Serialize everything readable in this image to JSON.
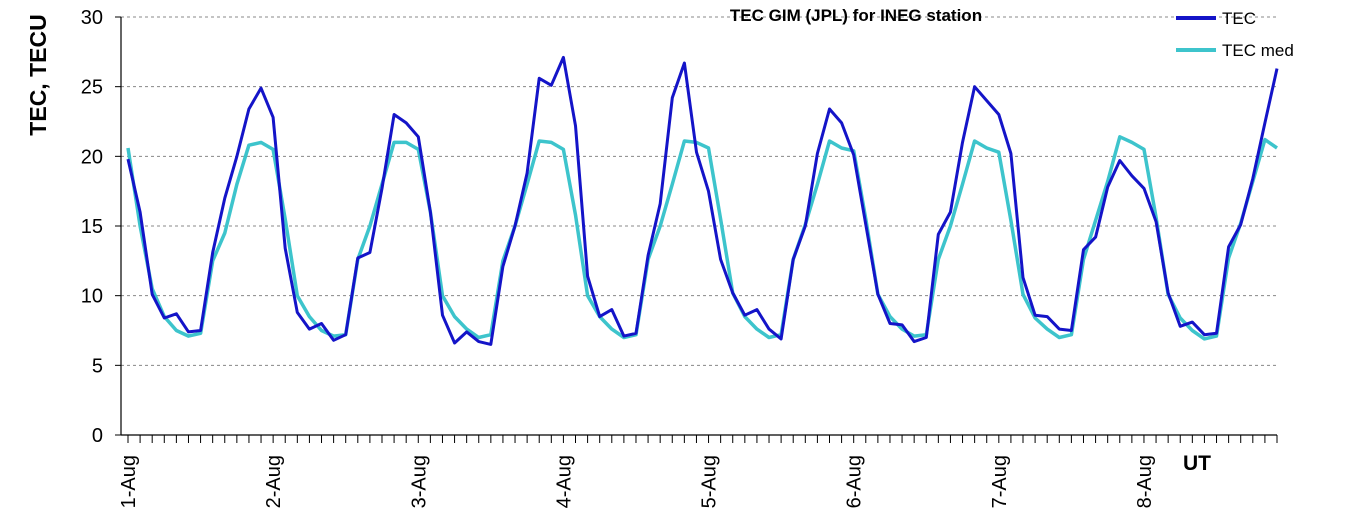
{
  "chart_data": {
    "type": "line",
    "title": "TEC GIM (JPL) for INEG station",
    "ylabel": "TEC, TECU",
    "xlabel": "UT",
    "ylim": [
      0,
      30
    ],
    "yticks": [
      "0",
      "5",
      "10",
      "15",
      "20",
      "25",
      "30"
    ],
    "grid": "horizontal dashed",
    "legend_position": "top-right",
    "date_labels": [
      "1-Aug",
      "2-Aug",
      "3-Aug",
      "4-Aug",
      "5-Aug",
      "6-Aug",
      "7-Aug",
      "8-Aug"
    ],
    "points_per_day": 12,
    "series": [
      {
        "name": "TEC",
        "color": "#1414C8",
        "values": [
          19.8,
          16.0,
          10.1,
          8.4,
          8.7,
          7.4,
          7.5,
          13.1,
          17.0,
          20.0,
          23.4,
          24.9,
          22.8,
          13.4,
          8.8,
          7.6,
          8.0,
          6.8,
          7.2,
          12.7,
          13.1,
          17.7,
          23.0,
          22.4,
          21.4,
          16.0,
          8.6,
          6.6,
          7.4,
          6.7,
          6.5,
          12.1,
          15.0,
          18.8,
          25.6,
          25.1,
          27.1,
          22.2,
          11.4,
          8.5,
          9.0,
          7.1,
          7.3,
          12.9,
          16.6,
          24.2,
          26.7,
          20.3,
          17.5,
          12.6,
          10.2,
          8.6,
          9.0,
          7.6,
          6.9,
          12.6,
          15.0,
          20.2,
          23.4,
          22.4,
          20.1,
          15.1,
          10.1,
          8.0,
          7.9,
          6.7,
          7.0,
          14.4,
          16.0,
          21.0,
          25.0,
          24.0,
          23.0,
          20.2,
          11.3,
          8.6,
          8.5,
          7.6,
          7.5,
          13.3,
          14.2,
          17.8,
          19.7,
          18.6,
          17.7,
          15.3,
          10.2,
          7.8,
          8.1,
          7.2,
          7.3,
          13.5,
          15.1,
          18.4,
          22.4,
          26.3
        ]
      },
      {
        "name": "TEC med",
        "color": "#3DC4CC",
        "values": [
          20.6,
          15.0,
          10.5,
          8.5,
          7.5,
          7.1,
          7.3,
          12.5,
          14.5,
          18.0,
          20.8,
          21.0,
          20.5,
          15.5,
          10.0,
          8.5,
          7.5,
          7.1,
          7.2,
          12.6,
          15.0,
          18.0,
          21.0,
          21.0,
          20.5,
          16.0,
          10.0,
          8.5,
          7.6,
          7.0,
          7.2,
          12.5,
          15.0,
          18.0,
          21.1,
          21.0,
          20.5,
          15.8,
          10.0,
          8.5,
          7.6,
          7.0,
          7.2,
          12.6,
          15.0,
          18.0,
          21.1,
          21.0,
          20.6,
          15.5,
          10.2,
          8.5,
          7.6,
          7.0,
          7.2,
          12.6,
          15.1,
          18.0,
          21.1,
          20.6,
          20.4,
          15.5,
          10.1,
          8.5,
          7.6,
          7.1,
          7.2,
          12.6,
          15.0,
          18.0,
          21.1,
          20.6,
          20.3,
          15.4,
          10.1,
          8.4,
          7.6,
          7.0,
          7.2,
          12.6,
          15.4,
          18.2,
          21.4,
          21.0,
          20.5,
          15.6,
          10.1,
          8.4,
          7.5,
          6.9,
          7.1,
          12.7,
          15.2,
          18.2,
          21.2,
          20.6
        ]
      }
    ]
  }
}
